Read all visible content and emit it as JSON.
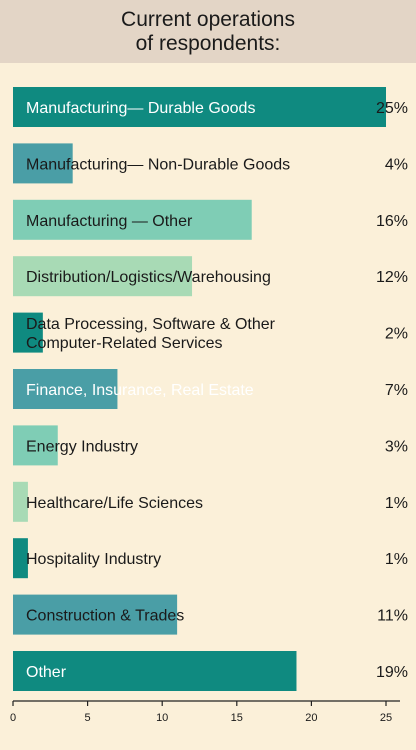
{
  "title_lines": [
    "Current operations",
    "of respondents:"
  ],
  "colors": {
    "background": "#fbf0d9",
    "title_band": "#e3d5c6",
    "axis": "#222222"
  },
  "chart_data": {
    "type": "bar",
    "orientation": "horizontal",
    "title": "Current operations of respondents:",
    "categories": [
      "Manufacturing— Durable Goods",
      "Manufacturing— Non-Durable Goods",
      "Manufacturing — Other",
      "Distribution/Logistics/Warehousing",
      "Data Processing, Software & Other Computer-Related Services",
      "Finance, Insurance, Real Estate",
      "Energy Industry",
      "Healthcare/Life Sciences",
      "Hospitality Industry",
      "Construction & Trades",
      "Other"
    ],
    "label_lines": [
      [
        "Manufacturing— Durable Goods"
      ],
      [
        "Manufacturing— Non-Durable Goods"
      ],
      [
        "Manufacturing — Other"
      ],
      [
        "Distribution/Logistics/Warehousing"
      ],
      [
        "Data Processing, Software & Other",
        "Computer-Related Services"
      ],
      [
        "Finance, Insurance, Real Estate"
      ],
      [
        "Energy Industry"
      ],
      [
        "Healthcare/Life Sciences"
      ],
      [
        "Hospitality Industry"
      ],
      [
        "Construction & Trades"
      ],
      [
        "Other"
      ]
    ],
    "values": [
      25,
      4,
      16,
      12,
      2,
      7,
      3,
      1,
      1,
      11,
      19
    ],
    "value_labels": [
      "25%",
      "4%",
      "16%",
      "12%",
      "2%",
      "7%",
      "3%",
      "1%",
      "1%",
      "11%",
      "19%"
    ],
    "bar_colors": [
      "#0f8a80",
      "#4a9ea6",
      "#7fcdb5",
      "#a8dab5",
      "#0f8a80",
      "#4a9ea6",
      "#7fcdb5",
      "#a8dab5",
      "#0f8a80",
      "#4a9ea6",
      "#0f8a80"
    ],
    "label_light": [
      true,
      false,
      false,
      false,
      false,
      true,
      false,
      false,
      false,
      false,
      true
    ],
    "xlim": [
      0,
      25
    ],
    "xticks": [
      0,
      5,
      10,
      15,
      20,
      25
    ],
    "xlabel": "",
    "ylabel": "",
    "grid": false,
    "legend": "none"
  }
}
